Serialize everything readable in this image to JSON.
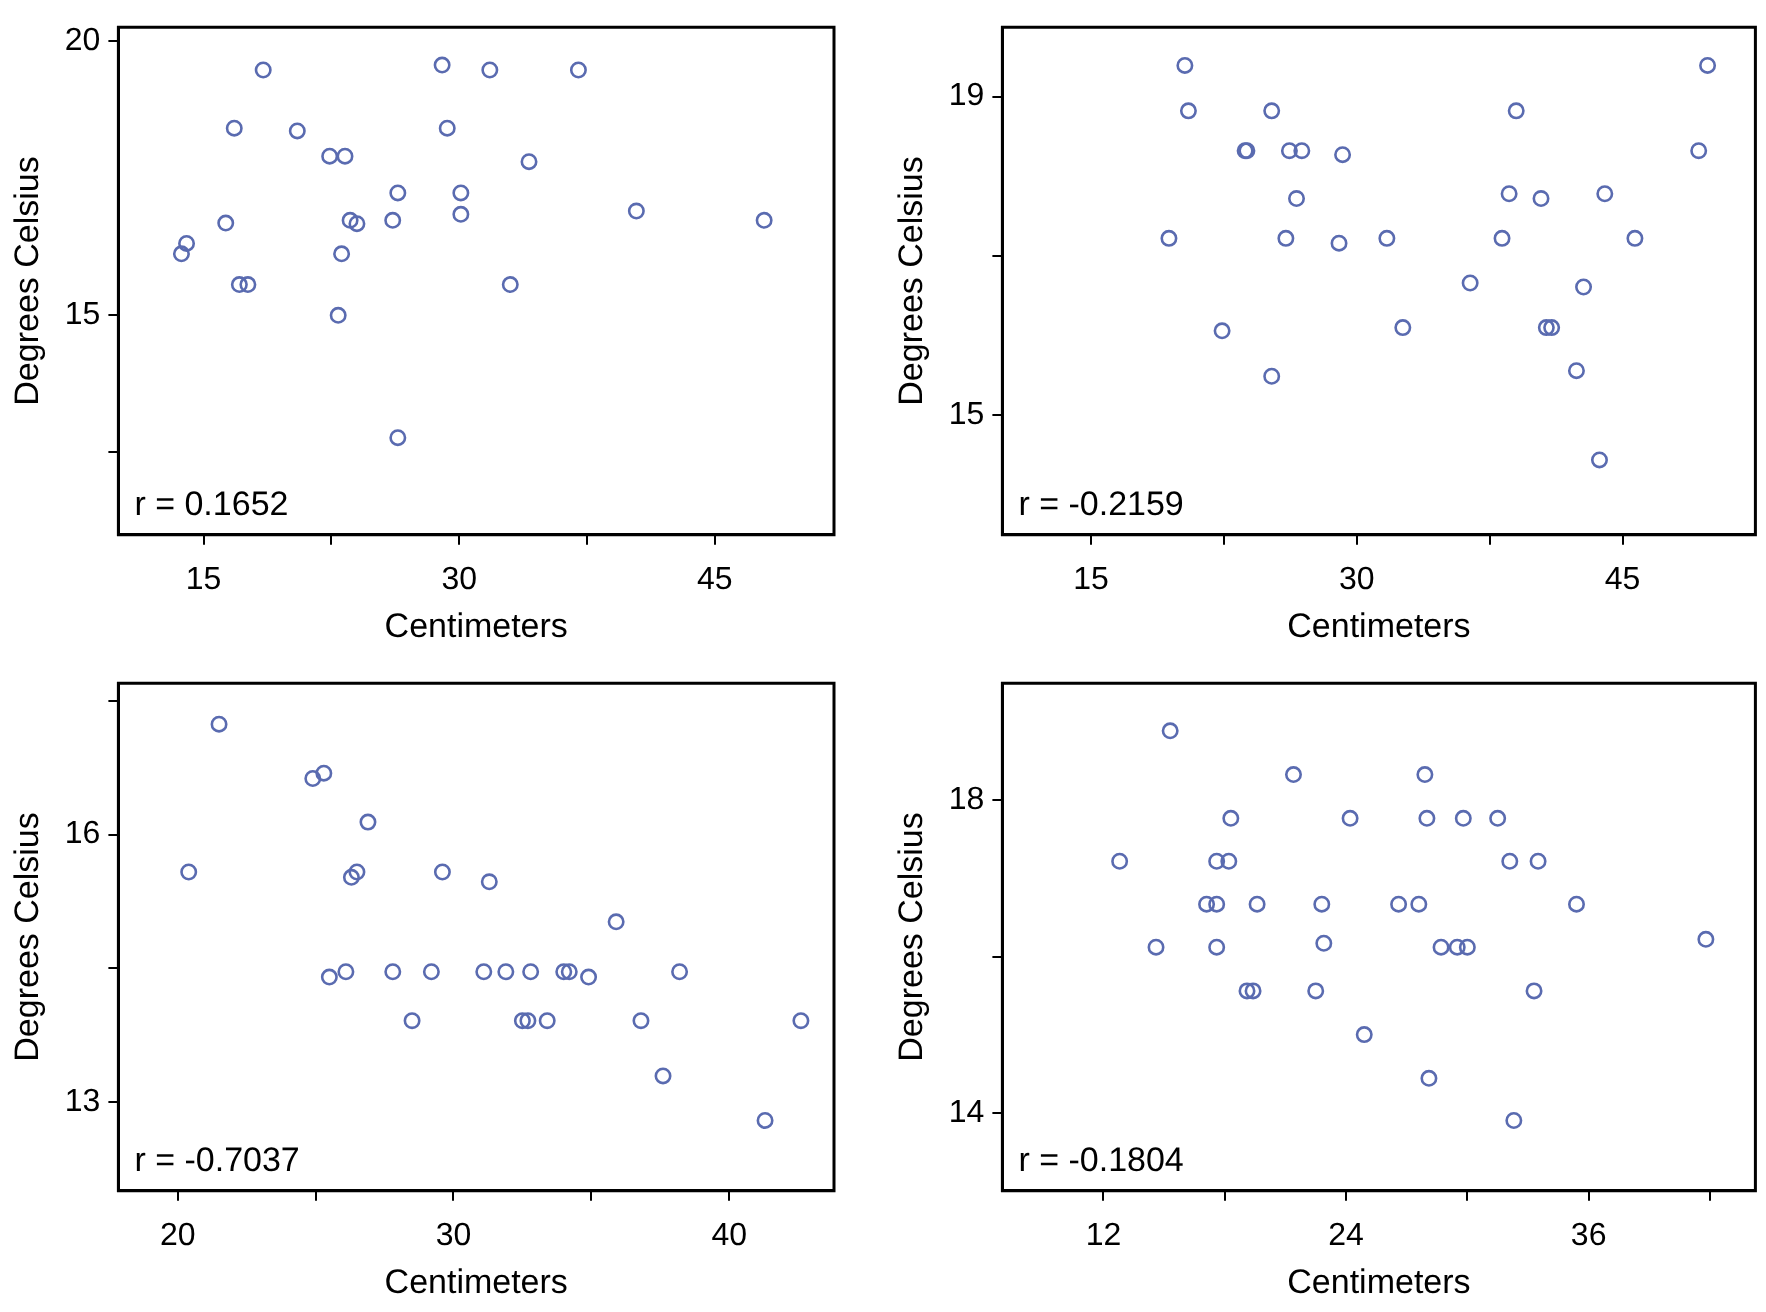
{
  "chart_data": [
    {
      "type": "scatter",
      "xlabel": "Centimeters",
      "ylabel": "Degrees Celsius",
      "annotations": [
        "r = 0.1652"
      ],
      "marker": "circle",
      "grid": false,
      "xlim": [
        10,
        52
      ],
      "ylim": [
        11,
        20.25
      ],
      "xticks": [
        15,
        {
          "value": 22.5,
          "label": null
        },
        30,
        {
          "value": 37.5,
          "label": null
        },
        45
      ],
      "yticks": [
        {
          "value": 12.5,
          "label": null
        },
        15,
        20
      ],
      "series": [
        {
          "color": "#5a6bb0",
          "x": [
            18.5,
            29.0,
            31.8,
            37.0,
            16.8,
            20.5,
            29.3,
            22.4,
            23.3,
            34.1,
            26.4,
            30.1,
            30.1,
            40.4,
            23.6,
            24.0,
            26.1,
            47.9,
            16.3,
            14.0,
            13.7,
            23.1,
            17.1,
            17.6,
            33.0,
            22.9,
            26.4
          ],
          "values": [
            19.47,
            19.56,
            19.47,
            19.47,
            18.41,
            18.36,
            18.41,
            17.9,
            17.9,
            17.8,
            17.23,
            17.23,
            16.84,
            16.9,
            16.73,
            16.67,
            16.73,
            16.73,
            16.68,
            16.31,
            16.12,
            16.12,
            15.56,
            15.56,
            15.56,
            15.0,
            12.77
          ]
        }
      ]
    },
    {
      "type": "scatter",
      "xlabel": "Centimeters",
      "ylabel": "Degrees Celsius",
      "annotations": [
        "r = -0.2159"
      ],
      "marker": "circle",
      "grid": false,
      "xlim": [
        10,
        52.5
      ],
      "ylim": [
        13.5,
        19.87
      ],
      "xticks": [
        15,
        {
          "value": 22.5,
          "label": null
        },
        30,
        {
          "value": 37.5,
          "label": null
        },
        45
      ],
      "yticks": [
        15,
        {
          "value": 17,
          "label": null
        },
        19
      ],
      "series": [
        {
          "color": "#5a6bb0",
          "x": [
            20.3,
            20.5,
            25.2,
            39.0,
            49.8,
            23.7,
            23.8,
            26.2,
            26.9,
            29.2,
            49.3,
            26.6,
            38.6,
            40.4,
            44.0,
            19.4,
            26.0,
            29.0,
            31.7,
            38.2,
            45.7,
            36.4,
            42.8,
            22.4,
            32.6,
            40.7,
            41.0,
            25.2,
            42.4,
            43.7
          ],
          "values": [
            19.39,
            18.82,
            18.82,
            18.82,
            19.39,
            18.32,
            18.32,
            18.32,
            18.32,
            18.27,
            18.32,
            17.72,
            17.78,
            17.72,
            17.78,
            17.22,
            17.22,
            17.16,
            17.22,
            17.22,
            17.22,
            16.66,
            16.61,
            16.06,
            16.1,
            16.1,
            16.1,
            15.49,
            15.56,
            14.44
          ]
        }
      ]
    },
    {
      "type": "scatter",
      "xlabel": "Centimeters",
      "ylabel": "Degrees Celsius",
      "annotations": [
        "r = -0.7037"
      ],
      "marker": "circle",
      "grid": false,
      "xlim": [
        17.85,
        43.8
      ],
      "ylim": [
        12,
        17.7
      ],
      "xticks": [
        20,
        {
          "value": 25,
          "label": null
        },
        30,
        {
          "value": 35,
          "label": null
        },
        40
      ],
      "yticks": [
        13,
        {
          "value": 14.5,
          "label": null
        },
        16,
        {
          "value": 17.5,
          "label": null
        }
      ],
      "series": [
        {
          "color": "#5a6bb0",
          "x": [
            21.5,
            24.9,
            25.3,
            26.9,
            20.4,
            26.3,
            26.5,
            29.6,
            31.3,
            35.9,
            25.5,
            26.1,
            27.8,
            29.2,
            31.1,
            31.9,
            32.8,
            34.0,
            34.2,
            34.9,
            38.2,
            28.5,
            32.5,
            32.7,
            33.4,
            36.8,
            42.6,
            37.6,
            41.3
          ],
          "values": [
            17.24,
            16.63,
            16.69,
            16.14,
            15.58,
            15.52,
            15.58,
            15.58,
            15.47,
            15.02,
            14.4,
            14.46,
            14.46,
            14.46,
            14.46,
            14.46,
            14.46,
            14.46,
            14.46,
            14.4,
            14.46,
            13.91,
            13.91,
            13.91,
            13.91,
            13.91,
            13.91,
            13.29,
            12.79
          ]
        }
      ]
    },
    {
      "type": "scatter",
      "xlabel": "Centimeters",
      "ylabel": "Degrees Celsius",
      "annotations": [
        "r = -0.1804"
      ],
      "marker": "circle",
      "grid": false,
      "xlim": [
        7,
        44.25
      ],
      "ylim": [
        13,
        19.5
      ],
      "xticks": [
        12,
        {
          "value": 18,
          "label": null
        },
        24,
        {
          "value": 30,
          "label": null
        },
        36,
        {
          "value": 42,
          "label": null
        }
      ],
      "yticks": [
        14,
        {
          "value": 16,
          "label": null
        },
        18
      ],
      "series": [
        {
          "color": "#5a6bb0",
          "x": [
            15.3,
            21.4,
            27.9,
            18.3,
            24.2,
            28.0,
            29.8,
            31.5,
            12.8,
            17.6,
            18.2,
            32.1,
            33.5,
            17.1,
            17.6,
            19.6,
            22.8,
            26.6,
            27.6,
            35.4,
            14.6,
            17.6,
            22.9,
            28.7,
            29.5,
            30.0,
            41.8,
            19.1,
            19.4,
            22.5,
            33.3,
            24.9,
            28.1,
            32.3
          ],
          "values": [
            18.89,
            18.33,
            18.33,
            17.77,
            17.77,
            17.77,
            17.77,
            17.77,
            17.22,
            17.22,
            17.22,
            17.22,
            17.22,
            16.67,
            16.67,
            16.67,
            16.67,
            16.67,
            16.67,
            16.67,
            16.12,
            16.12,
            16.17,
            16.12,
            16.12,
            16.12,
            16.22,
            15.56,
            15.56,
            15.56,
            15.56,
            15.0,
            14.44,
            13.9
          ]
        }
      ]
    }
  ]
}
